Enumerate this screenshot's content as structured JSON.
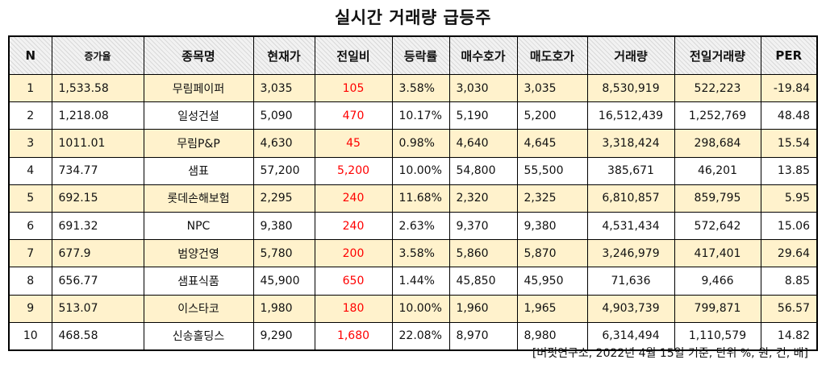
{
  "title": "실시간 거래량 급등주",
  "headers": [
    "N",
    "증가율",
    "종목명",
    "현재가",
    "전일비",
    "등락률",
    "매수호가",
    "매도호가",
    "거래량",
    "전일거래량",
    "PER"
  ],
  "rows": [
    [
      "1",
      "1,533.58",
      "무림페이퍼",
      "3,035",
      "105",
      "3.58%",
      "3,030",
      "3,035",
      "8,530,919",
      "522,223",
      "-19.84"
    ],
    [
      "2",
      "1,218.08",
      "일성건설",
      "5,090",
      "470",
      "10.17%",
      "5,190",
      "5,200",
      "16,512,439",
      "1,252,769",
      "48.48"
    ],
    [
      "3",
      "1011.01",
      "무림P&P",
      "4,630",
      "45",
      "0.98%",
      "4,640",
      "4,645",
      "3,318,424",
      "298,684",
      "15.54"
    ],
    [
      "4",
      "734.77",
      "샘표",
      "57,200",
      "5,200",
      "10.00%",
      "54,800",
      "55,500",
      "385,671",
      "46,201",
      "13.85"
    ],
    [
      "5",
      "692.15",
      "롯데손해보험",
      "2,295",
      "240",
      "11.68%",
      "2,320",
      "2,325",
      "6,810,857",
      "859,795",
      "5.95"
    ],
    [
      "6",
      "691.32",
      "NPC",
      "9,380",
      "240",
      "2.63%",
      "9,370",
      "9,380",
      "4,531,434",
      "572,642",
      "15.06"
    ],
    [
      "7",
      "677.9",
      "범양건영",
      "5,780",
      "200",
      "3.58%",
      "5,860",
      "5,870",
      "3,246,979",
      "417,401",
      "29.64"
    ],
    [
      "8",
      "656.77",
      "샘표식품",
      "45,900",
      "650",
      "1.44%",
      "45,850",
      "45,950",
      "71,636",
      "9,466",
      "8.85"
    ],
    [
      "9",
      "513.07",
      "이스타코",
      "1,980",
      "180",
      "10.00%",
      "1,960",
      "1,965",
      "4,903,739",
      "799,871",
      "56.57"
    ],
    [
      "10",
      "468.58",
      "신송홀딩스",
      "9,290",
      "1,680",
      "22.08%",
      "8,970",
      "8,980",
      "6,314,494",
      "1,110,579",
      "14.82"
    ]
  ],
  "note": "[버핏연구소, 2022년 4월 15일 기준, 단위 %, 원, 건, 배]",
  "colors": {
    "highlight_row": "#fff2cc",
    "change_value": "#ff0000"
  }
}
